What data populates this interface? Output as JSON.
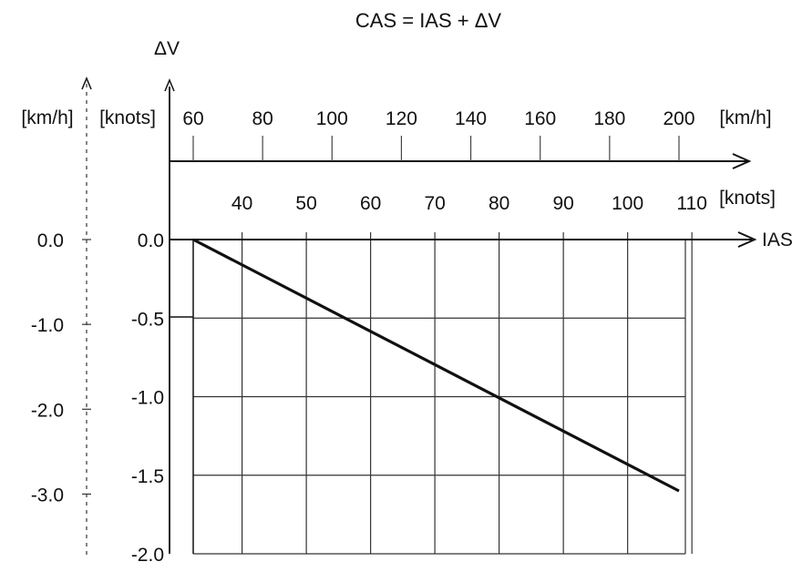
{
  "chart_data": {
    "type": "line",
    "title": "CAS = IAS + ΔV",
    "ylabel": "ΔV",
    "xlabel": "IAS",
    "units": {
      "kmh": "[km/h]",
      "knots": "[knots]"
    },
    "x_axis_kmh": {
      "ticks": [
        "60",
        "80",
        "100",
        "120",
        "140",
        "160",
        "180",
        "200"
      ],
      "xlim": [
        60,
        200
      ]
    },
    "x_axis_knots": {
      "ticks": [
        "40",
        "50",
        "60",
        "70",
        "80",
        "90",
        "100",
        "110"
      ]
    },
    "y_axis_knots": {
      "ticks": [
        "0.0",
        "-0.5",
        "-1.0",
        "-1.5",
        "-2.0"
      ],
      "ylim": [
        -2.0,
        0.0
      ]
    },
    "y_axis_kmh": {
      "ticks": [
        "0.0",
        "-1.0",
        "-2.0",
        "-3.0"
      ]
    },
    "grid": true,
    "series": [
      {
        "x": [
          60,
          200
        ],
        "y": [
          0.0,
          -1.6
        ]
      }
    ],
    "colors": {
      "line": "#111111",
      "grid": "#333333",
      "background": "#ffffff"
    }
  }
}
